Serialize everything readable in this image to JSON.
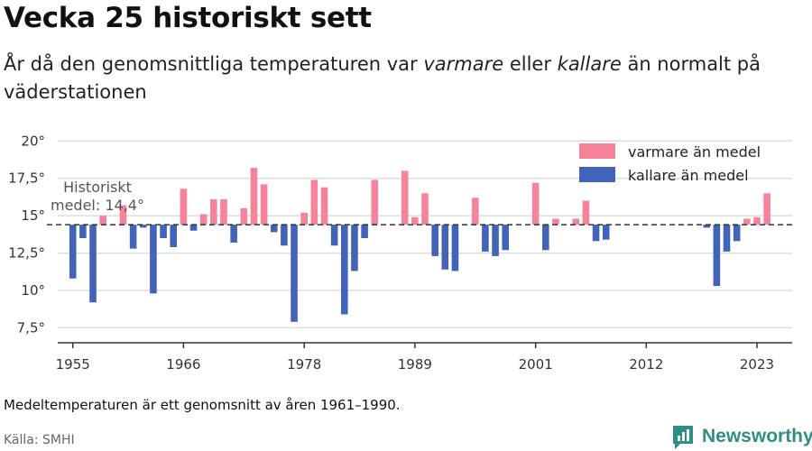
{
  "header": {
    "title": "Vecka 25 historiskt sett",
    "subtitle_part1": "År då den genomsnittliga temperaturen var ",
    "subtitle_warm_word": "varmare",
    "subtitle_part2": " eller ",
    "subtitle_cold_word": "kallare",
    "subtitle_part3": " än normalt på väderstationen"
  },
  "footer": {
    "note": "Medeltemperaturen är ett genomsnitt av åren 1961–1990.",
    "source": "Källa: SMHI",
    "brand": "Newsworthy",
    "brand_icon": "newsworthy-logo-icon"
  },
  "colors": {
    "warm": "#f5849a",
    "cold": "#4164b9",
    "mean_line": "#333333",
    "grid": "#dddddd"
  },
  "chart_data": {
    "type": "bar",
    "title": "Vecka 25 historiskt sett",
    "baseline": 14.4,
    "mean_label_line1": "Historiskt",
    "mean_label_line2": "medel: 14,4°",
    "ylim": [
      6.5,
      20.5
    ],
    "yticks": [
      7.5,
      10,
      12.5,
      15,
      17.5,
      20
    ],
    "ytick_labels": [
      "7,5°",
      "10°",
      "12,5°",
      "15°",
      "17,5°",
      "20°"
    ],
    "xlim": [
      1953.5,
      2026.5
    ],
    "xticks": [
      1955,
      1966,
      1978,
      1989,
      2001,
      2012,
      2023
    ],
    "xtick_labels": [
      "1955",
      "1966",
      "1978",
      "1989",
      "2001",
      "2012",
      "2023"
    ],
    "legend": {
      "position": "top-right",
      "warm_label": "varmare än medel",
      "cold_label": "kallare än medel"
    },
    "years": [
      1955,
      1956,
      1957,
      1958,
      1960,
      1961,
      1962,
      1963,
      1964,
      1965,
      1966,
      1967,
      1968,
      1969,
      1970,
      1971,
      1972,
      1973,
      1974,
      1975,
      1976,
      1977,
      1978,
      1979,
      1980,
      1981,
      1982,
      1983,
      1984,
      1985,
      1988,
      1989,
      1990,
      1991,
      1992,
      1993,
      1995,
      1996,
      1997,
      1998,
      2001,
      2002,
      2003,
      2005,
      2006,
      2007,
      2008,
      2018,
      2019,
      2020,
      2021,
      2022,
      2023,
      2024
    ],
    "values": [
      10.8,
      13.5,
      9.2,
      15.0,
      15.7,
      12.8,
      14.2,
      9.8,
      13.5,
      12.9,
      16.8,
      14.0,
      15.1,
      16.1,
      16.1,
      13.2,
      15.5,
      18.2,
      17.1,
      13.9,
      13.0,
      7.9,
      15.2,
      17.4,
      16.9,
      13.0,
      8.4,
      11.3,
      13.5,
      17.4,
      18.0,
      14.9,
      16.5,
      12.3,
      11.4,
      11.3,
      16.2,
      12.6,
      12.3,
      12.7,
      17.2,
      12.7,
      14.8,
      14.8,
      16.0,
      13.3,
      13.4,
      14.2,
      10.3,
      12.6,
      13.3,
      14.8,
      14.9,
      16.5
    ]
  }
}
